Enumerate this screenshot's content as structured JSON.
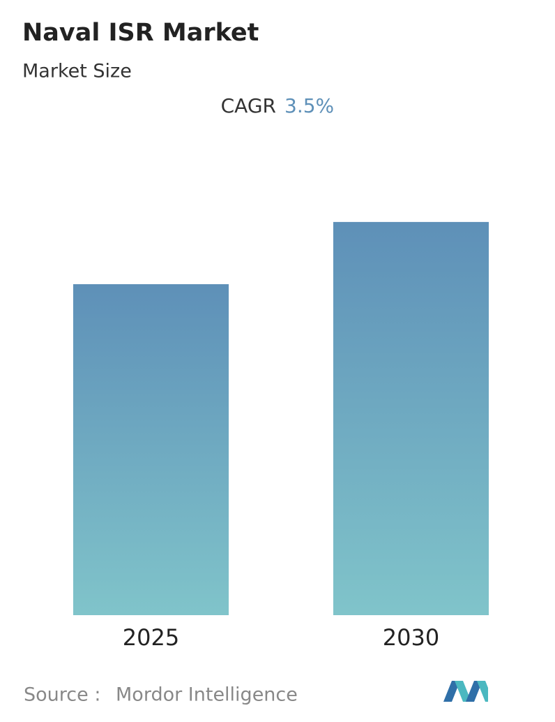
{
  "chart_data": {
    "type": "bar",
    "title": "Naval ISR Market",
    "subtitle": "Market Size",
    "cagr_label": "CAGR",
    "cagr_value": "3.5%",
    "categories": [
      "2025",
      "2030"
    ],
    "values": [
      100,
      118.8
    ],
    "gradient": [
      "#5e90b8",
      "#80c4ca"
    ],
    "ylim": [
      0,
      125
    ],
    "source_label": "Source :",
    "source": "Mordor Intelligence"
  }
}
